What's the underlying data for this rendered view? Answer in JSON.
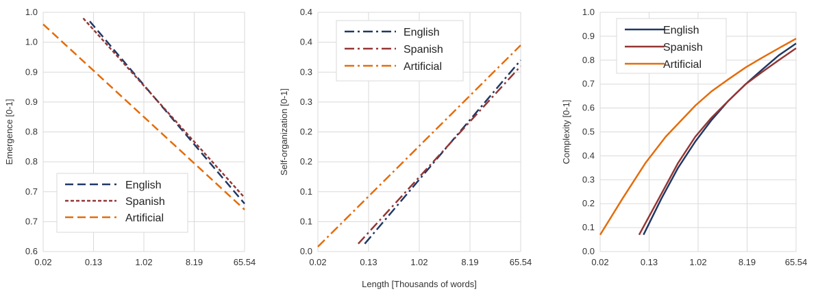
{
  "chart_data": [
    {
      "type": "line",
      "title": "",
      "xlabel": "",
      "ylabel": "Emergence [0-1]",
      "x_tick_labels": [
        "0.02",
        "0.13",
        "1.02",
        "8.19",
        "65.54"
      ],
      "y_tick_labels": [
        "0.6",
        "0.7",
        "0.7",
        "0.8",
        "0.8",
        "0.9",
        "0.9",
        "1.0",
        "1.0"
      ],
      "ylim": [
        0.6,
        1.0
      ],
      "grid": true,
      "legend": "bottom-left",
      "series": [
        {
          "name": "English",
          "color": "#1f3864",
          "dash": "dash",
          "points": [
            [
              0.13,
              0.985
            ],
            [
              65.54,
              0.68
            ]
          ]
        },
        {
          "name": "Spanish",
          "color": "#943634",
          "dash": "short-dash",
          "points": [
            [
              0.1,
              0.99
            ],
            [
              65.54,
              0.69
            ]
          ]
        },
        {
          "name": "Artificial",
          "color": "#e46c0a",
          "dash": "dash",
          "points": [
            [
              0.02,
              0.98
            ],
            [
              65.54,
              0.67
            ]
          ]
        }
      ]
    },
    {
      "type": "line",
      "title": "",
      "xlabel": "Length [Thousands of words]",
      "ylabel": "Self-organization [0-1]",
      "x_tick_labels": [
        "0.02",
        "0.13",
        "1.02",
        "8.19",
        "65.54"
      ],
      "y_tick_labels": [
        "0.0",
        "0.1",
        "0.1",
        "0.2",
        "0.2",
        "0.3",
        "0.3",
        "0.4",
        "0.4"
      ],
      "ylim": [
        0.0,
        0.4
      ],
      "grid": true,
      "legend": "top-left",
      "series": [
        {
          "name": "English",
          "color": "#1f3864",
          "dash": "dash-dot",
          "points": [
            [
              0.13,
              0.013
            ],
            [
              65.54,
              0.32
            ]
          ]
        },
        {
          "name": "Spanish",
          "color": "#943634",
          "dash": "dash-dot",
          "points": [
            [
              0.1,
              0.013
            ],
            [
              65.54,
              0.31
            ]
          ]
        },
        {
          "name": "Artificial",
          "color": "#e46c0a",
          "dash": "dash-dot",
          "points": [
            [
              0.02,
              0.008
            ],
            [
              65.54,
              0.345
            ]
          ]
        }
      ]
    },
    {
      "type": "line",
      "title": "",
      "xlabel": "",
      "ylabel": "Complexity [0-1]",
      "x_tick_labels": [
        "0.02",
        "0.13",
        "1.02",
        "8.19",
        "65.54"
      ],
      "y_tick_labels": [
        "0.0",
        "0.1",
        "0.2",
        "0.3",
        "0.4",
        "0.5",
        "0.6",
        "0.7",
        "0.8",
        "0.9",
        "1.0"
      ],
      "ylim": [
        0.0,
        1.0
      ],
      "grid": true,
      "legend": "top-left",
      "series": [
        {
          "name": "English",
          "color": "#1f3864",
          "dash": "solid",
          "points": [
            [
              0.12,
              0.07
            ],
            [
              0.25,
              0.22
            ],
            [
              0.5,
              0.35
            ],
            [
              1.02,
              0.46
            ],
            [
              2.0,
              0.55
            ],
            [
              4.0,
              0.63
            ],
            [
              8.19,
              0.7
            ],
            [
              16.0,
              0.76
            ],
            [
              32.0,
              0.82
            ],
            [
              65.54,
              0.87
            ]
          ]
        },
        {
          "name": "Spanish",
          "color": "#943634",
          "dash": "solid",
          "points": [
            [
              0.1,
              0.07
            ],
            [
              0.25,
              0.24
            ],
            [
              0.5,
              0.37
            ],
            [
              1.02,
              0.48
            ],
            [
              2.0,
              0.56
            ],
            [
              4.0,
              0.63
            ],
            [
              8.19,
              0.7
            ],
            [
              16.0,
              0.75
            ],
            [
              32.0,
              0.8
            ],
            [
              65.54,
              0.85
            ]
          ]
        },
        {
          "name": "Artificial",
          "color": "#e46c0a",
          "dash": "solid",
          "points": [
            [
              0.02,
              0.07
            ],
            [
              0.05,
              0.22
            ],
            [
              0.13,
              0.37
            ],
            [
              0.3,
              0.48
            ],
            [
              1.02,
              0.61
            ],
            [
              2.0,
              0.67
            ],
            [
              4.0,
              0.72
            ],
            [
              8.19,
              0.77
            ],
            [
              16.0,
              0.81
            ],
            [
              32.0,
              0.85
            ],
            [
              65.54,
              0.89
            ]
          ]
        }
      ]
    }
  ]
}
